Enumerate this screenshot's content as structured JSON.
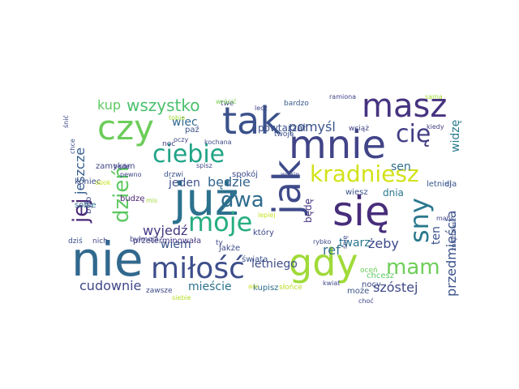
{
  "wordcloud": {
    "words": [
      {
        "text": "już",
        "color": "#2c718e"
      },
      {
        "text": "nie",
        "color": "#31688e"
      },
      {
        "text": "tak",
        "color": "#3b528b"
      },
      {
        "text": "mnie",
        "color": "#414487"
      },
      {
        "text": "się",
        "color": "#472d7b"
      },
      {
        "text": "jak",
        "color": "#3e4a89"
      },
      {
        "text": "gdy",
        "color": "#a0da39"
      },
      {
        "text": "masz",
        "color": "#46337f"
      },
      {
        "text": "czy",
        "color": "#6ccd5a"
      },
      {
        "text": "miłość",
        "color": "#3d4e8a"
      },
      {
        "text": "kradniesz",
        "color": "#d2e21b"
      },
      {
        "text": "ciebie",
        "color": "#20a486"
      },
      {
        "text": "moje",
        "color": "#26ad81"
      },
      {
        "text": "dzień",
        "color": "#5ec962"
      },
      {
        "text": "sny",
        "color": "#2a788e"
      },
      {
        "text": "cię",
        "color": "#433e85"
      },
      {
        "text": "mam",
        "color": "#6ece58"
      },
      {
        "text": "dwa",
        "color": "#2f6c8e"
      },
      {
        "text": "jej",
        "color": "#482677"
      },
      {
        "text": "wszystko",
        "color": "#4ac16d"
      },
      {
        "text": "pomyśl",
        "color": "#3a538b"
      },
      {
        "text": "cudownie",
        "color": "#3f4788"
      },
      {
        "text": "szóstej",
        "color": "#3e4989"
      },
      {
        "text": "przedmieścia",
        "color": "#3b528b"
      },
      {
        "text": "jeszcze",
        "color": "#365d8d"
      },
      {
        "text": "będzie",
        "color": "#32658e"
      },
      {
        "text": "wiec",
        "color": "#31688e"
      },
      {
        "text": "kup",
        "color": "#5ec962"
      },
      {
        "text": "wyjedź",
        "color": "#443983"
      },
      {
        "text": "ref",
        "color": "#2e6d8e"
      },
      {
        "text": "twarz",
        "color": "#2a778e"
      },
      {
        "text": "żeby",
        "color": "#3e4989"
      },
      {
        "text": "ten",
        "color": "#3b528b"
      },
      {
        "text": "letniego",
        "color": "#3d4d8a"
      },
      {
        "text": "wiem",
        "color": "#3a548c"
      },
      {
        "text": "mieście",
        "color": "#2c718e"
      },
      {
        "text": "jeden",
        "color": "#3b518b"
      },
      {
        "text": "sen",
        "color": "#2e6f8e"
      },
      {
        "text": "widzę",
        "color": "#297a8e"
      },
      {
        "text": "powtarzał",
        "color": "#3c508b"
      },
      {
        "text": "dnia",
        "color": "#2a768e"
      },
      {
        "text": "będę",
        "color": "#463480"
      },
      {
        "text": "sobie",
        "color": "#2d718e"
      },
      {
        "text": "jakże",
        "color": "#3e4a89"
      },
      {
        "text": "letniej",
        "color": "#39558c"
      },
      {
        "text": "dla",
        "color": "#39568c"
      },
      {
        "text": "kupisz",
        "color": "#2f6b8e"
      },
      {
        "text": "nocy",
        "color": "#3e4a89"
      },
      {
        "text": "chcesz",
        "color": "#5ec962"
      },
      {
        "text": "może",
        "color": "#3a538b"
      },
      {
        "text": "spokój",
        "color": "#3d4d8a"
      },
      {
        "text": "paź",
        "color": "#3b528b"
      },
      {
        "text": "zamykam",
        "color": "#404688"
      },
      {
        "text": "koniec",
        "color": "#3c4f8a"
      },
      {
        "text": "przeterminowała",
        "color": "#453882"
      },
      {
        "text": "który",
        "color": "#3e4b8a"
      },
      {
        "text": "świata",
        "color": "#3b528b"
      },
      {
        "text": "wiesz",
        "color": "#3b528b"
      },
      {
        "text": "budzę",
        "color": "#481f70"
      },
      {
        "text": "było",
        "color": "#3f4788"
      },
      {
        "text": "dziś",
        "color": "#3c4f8a"
      },
      {
        "text": "nich",
        "color": "#404688"
      },
      {
        "text": "byłmoja",
        "color": "#3f4788"
      },
      {
        "text": "drzwi",
        "color": "#3a538b"
      },
      {
        "text": "twoją",
        "color": "#3c4f8a"
      },
      {
        "text": "wciąż",
        "color": "#414487"
      },
      {
        "text": "bardzo",
        "color": "#38598c"
      },
      {
        "text": "ramiona",
        "color": "#414487"
      },
      {
        "text": "kiedy",
        "color": "#424086"
      },
      {
        "text": "sama",
        "color": "#a5db36"
      },
      {
        "text": "mały",
        "color": "#404688"
      },
      {
        "text": "oceń",
        "color": "#6ccd5a"
      },
      {
        "text": "rybko",
        "color": "#3e4989"
      },
      {
        "text": "kwiat",
        "color": "#404688"
      },
      {
        "text": "słońce",
        "color": "#bade28"
      },
      {
        "text": "zawsze",
        "color": "#3e4989"
      },
      {
        "text": "siebie",
        "color": "#bade28"
      },
      {
        "text": "lepiej",
        "color": "#c8e020"
      },
      {
        "text": "twe",
        "color": "#404688"
      },
      {
        "text": "lecz",
        "color": "#3f4788"
      },
      {
        "text": "wrócić",
        "color": "#7ad151"
      },
      {
        "text": "oczy",
        "color": "#3e4989"
      },
      {
        "text": "noc",
        "color": "#424086"
      },
      {
        "text": "tobie",
        "color": "#a0da39"
      },
      {
        "text": "będe",
        "color": "#404688"
      },
      {
        "text": "pewno",
        "color": "#3f4788"
      },
      {
        "text": "chce",
        "color": "#3b528b"
      },
      {
        "text": "śnić",
        "color": "#3e4989"
      },
      {
        "text": "śnię",
        "color": "#3f4788"
      },
      {
        "text": "ani",
        "color": "#c8e020"
      },
      {
        "text": "spisz",
        "color": "#3e4989"
      },
      {
        "text": "mis",
        "color": "#a0da39"
      },
      {
        "text": "obok",
        "color": "#c8e020"
      },
      {
        "text": "wcale",
        "color": "#3e4989"
      },
      {
        "text": "kochana",
        "color": "#3e4989"
      },
      {
        "text": "choć",
        "color": "#3f4788"
      },
      {
        "text": "znajdziesz",
        "color": "#3c508b"
      },
      {
        "text": "ty",
        "color": "#3e4989"
      }
    ]
  }
}
